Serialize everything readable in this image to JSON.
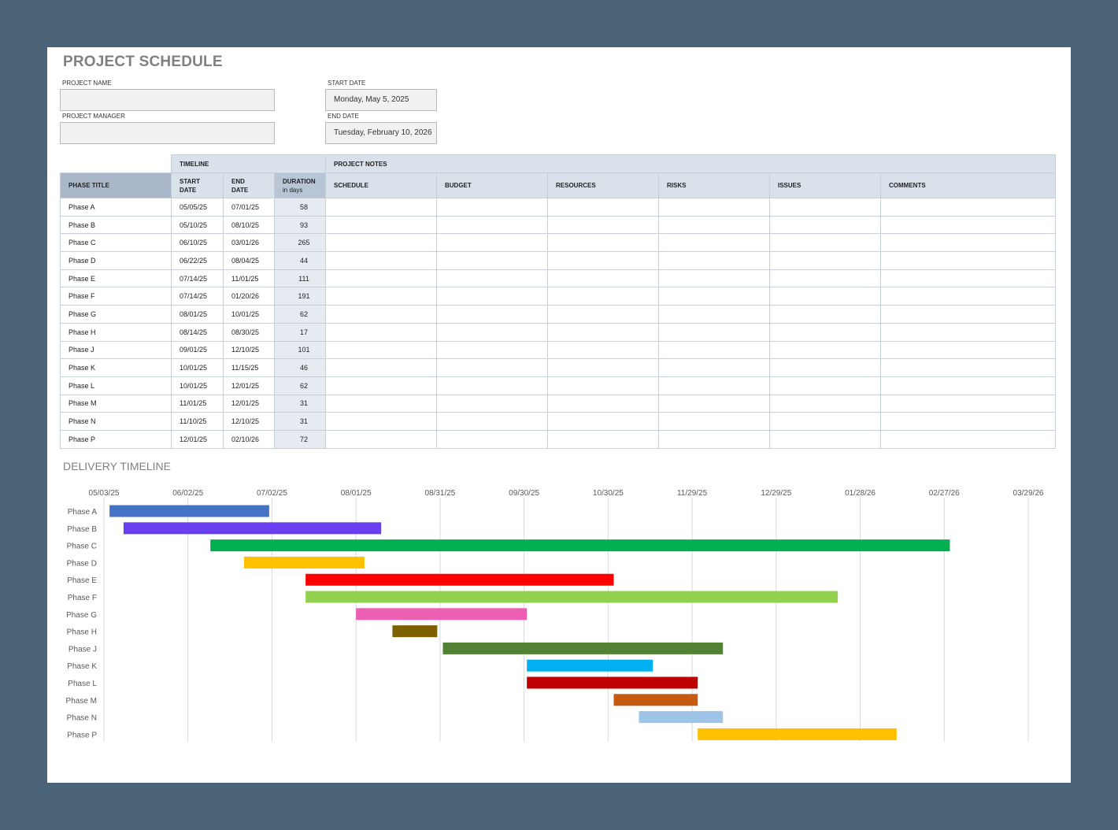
{
  "title": "PROJECT SCHEDULE",
  "fields": {
    "project_name_label": "PROJECT NAME",
    "project_name_value": "",
    "project_manager_label": "PROJECT MANAGER",
    "project_manager_value": "",
    "start_date_label": "START DATE",
    "start_date_value": "Monday, May 5, 2025",
    "end_date_label": "END DATE",
    "end_date_value": "Tuesday, February 10, 2026"
  },
  "table": {
    "group_timeline": "TIMELINE",
    "group_notes": "PROJECT NOTES",
    "col_phase": "PHASE TITLE",
    "col_start_1": "START",
    "col_start_2": "DATE",
    "col_end_1": "END",
    "col_end_2": "DATE",
    "col_duration_1": "DURATION",
    "col_duration_2": "in days",
    "col_schedule": "SCHEDULE",
    "col_budget": "BUDGET",
    "col_resources": "RESOURCES",
    "col_risks": "RISKS",
    "col_issues": "ISSUES",
    "col_comments": "COMMENTS",
    "rows": [
      {
        "phase": "Phase A",
        "start": "05/05/25",
        "end": "07/01/25",
        "duration": "58"
      },
      {
        "phase": "Phase B",
        "start": "05/10/25",
        "end": "08/10/25",
        "duration": "93"
      },
      {
        "phase": "Phase C",
        "start": "06/10/25",
        "end": "03/01/26",
        "duration": "265"
      },
      {
        "phase": "Phase D",
        "start": "06/22/25",
        "end": "08/04/25",
        "duration": "44"
      },
      {
        "phase": "Phase E",
        "start": "07/14/25",
        "end": "11/01/25",
        "duration": "111"
      },
      {
        "phase": "Phase F",
        "start": "07/14/25",
        "end": "01/20/26",
        "duration": "191"
      },
      {
        "phase": "Phase G",
        "start": "08/01/25",
        "end": "10/01/25",
        "duration": "62"
      },
      {
        "phase": "Phase H",
        "start": "08/14/25",
        "end": "08/30/25",
        "duration": "17"
      },
      {
        "phase": "Phase J",
        "start": "09/01/25",
        "end": "12/10/25",
        "duration": "101"
      },
      {
        "phase": "Phase K",
        "start": "10/01/25",
        "end": "11/15/25",
        "duration": "46"
      },
      {
        "phase": "Phase L",
        "start": "10/01/25",
        "end": "12/01/25",
        "duration": "62"
      },
      {
        "phase": "Phase M",
        "start": "11/01/25",
        "end": "12/01/25",
        "duration": "31"
      },
      {
        "phase": "Phase N",
        "start": "11/10/25",
        "end": "12/10/25",
        "duration": "31"
      },
      {
        "phase": "Phase P",
        "start": "12/01/25",
        "end": "02/10/26",
        "duration": "72"
      }
    ]
  },
  "timeline_title": "DELIVERY TIMELINE",
  "chart_data": {
    "type": "bar",
    "orientation": "horizontal-gantt",
    "x_tick_labels": [
      "05/03/25",
      "06/02/25",
      "07/02/25",
      "08/01/25",
      "08/31/25",
      "09/30/25",
      "10/30/25",
      "11/29/25",
      "12/29/25",
      "01/28/26",
      "02/27/26",
      "03/29/26"
    ],
    "xlim": [
      "2025-05-03",
      "2026-03-29"
    ],
    "grid": "vertical",
    "series": [
      {
        "name": "Phase A",
        "start": "2025-05-05",
        "end": "2025-07-01",
        "color": "#4472c4"
      },
      {
        "name": "Phase B",
        "start": "2025-05-10",
        "end": "2025-08-10",
        "color": "#6a3ff2"
      },
      {
        "name": "Phase C",
        "start": "2025-06-10",
        "end": "2026-03-01",
        "color": "#00b050"
      },
      {
        "name": "Phase D",
        "start": "2025-06-22",
        "end": "2025-08-04",
        "color": "#ffc000"
      },
      {
        "name": "Phase E",
        "start": "2025-07-14",
        "end": "2025-11-01",
        "color": "#ff0000"
      },
      {
        "name": "Phase F",
        "start": "2025-07-14",
        "end": "2026-01-20",
        "color": "#92d050"
      },
      {
        "name": "Phase G",
        "start": "2025-08-01",
        "end": "2025-10-01",
        "color": "#ec5fb3"
      },
      {
        "name": "Phase H",
        "start": "2025-08-14",
        "end": "2025-08-30",
        "color": "#7f6000"
      },
      {
        "name": "Phase J",
        "start": "2025-09-01",
        "end": "2025-12-10",
        "color": "#548235"
      },
      {
        "name": "Phase K",
        "start": "2025-10-01",
        "end": "2025-11-15",
        "color": "#00b0f0"
      },
      {
        "name": "Phase L",
        "start": "2025-10-01",
        "end": "2025-12-01",
        "color": "#c00000"
      },
      {
        "name": "Phase M",
        "start": "2025-11-01",
        "end": "2025-12-01",
        "color": "#c55a11"
      },
      {
        "name": "Phase N",
        "start": "2025-11-10",
        "end": "2025-12-10",
        "color": "#9dc3e6"
      },
      {
        "name": "Phase P",
        "start": "2025-12-01",
        "end": "2026-02-10",
        "color": "#ffc000"
      }
    ]
  }
}
